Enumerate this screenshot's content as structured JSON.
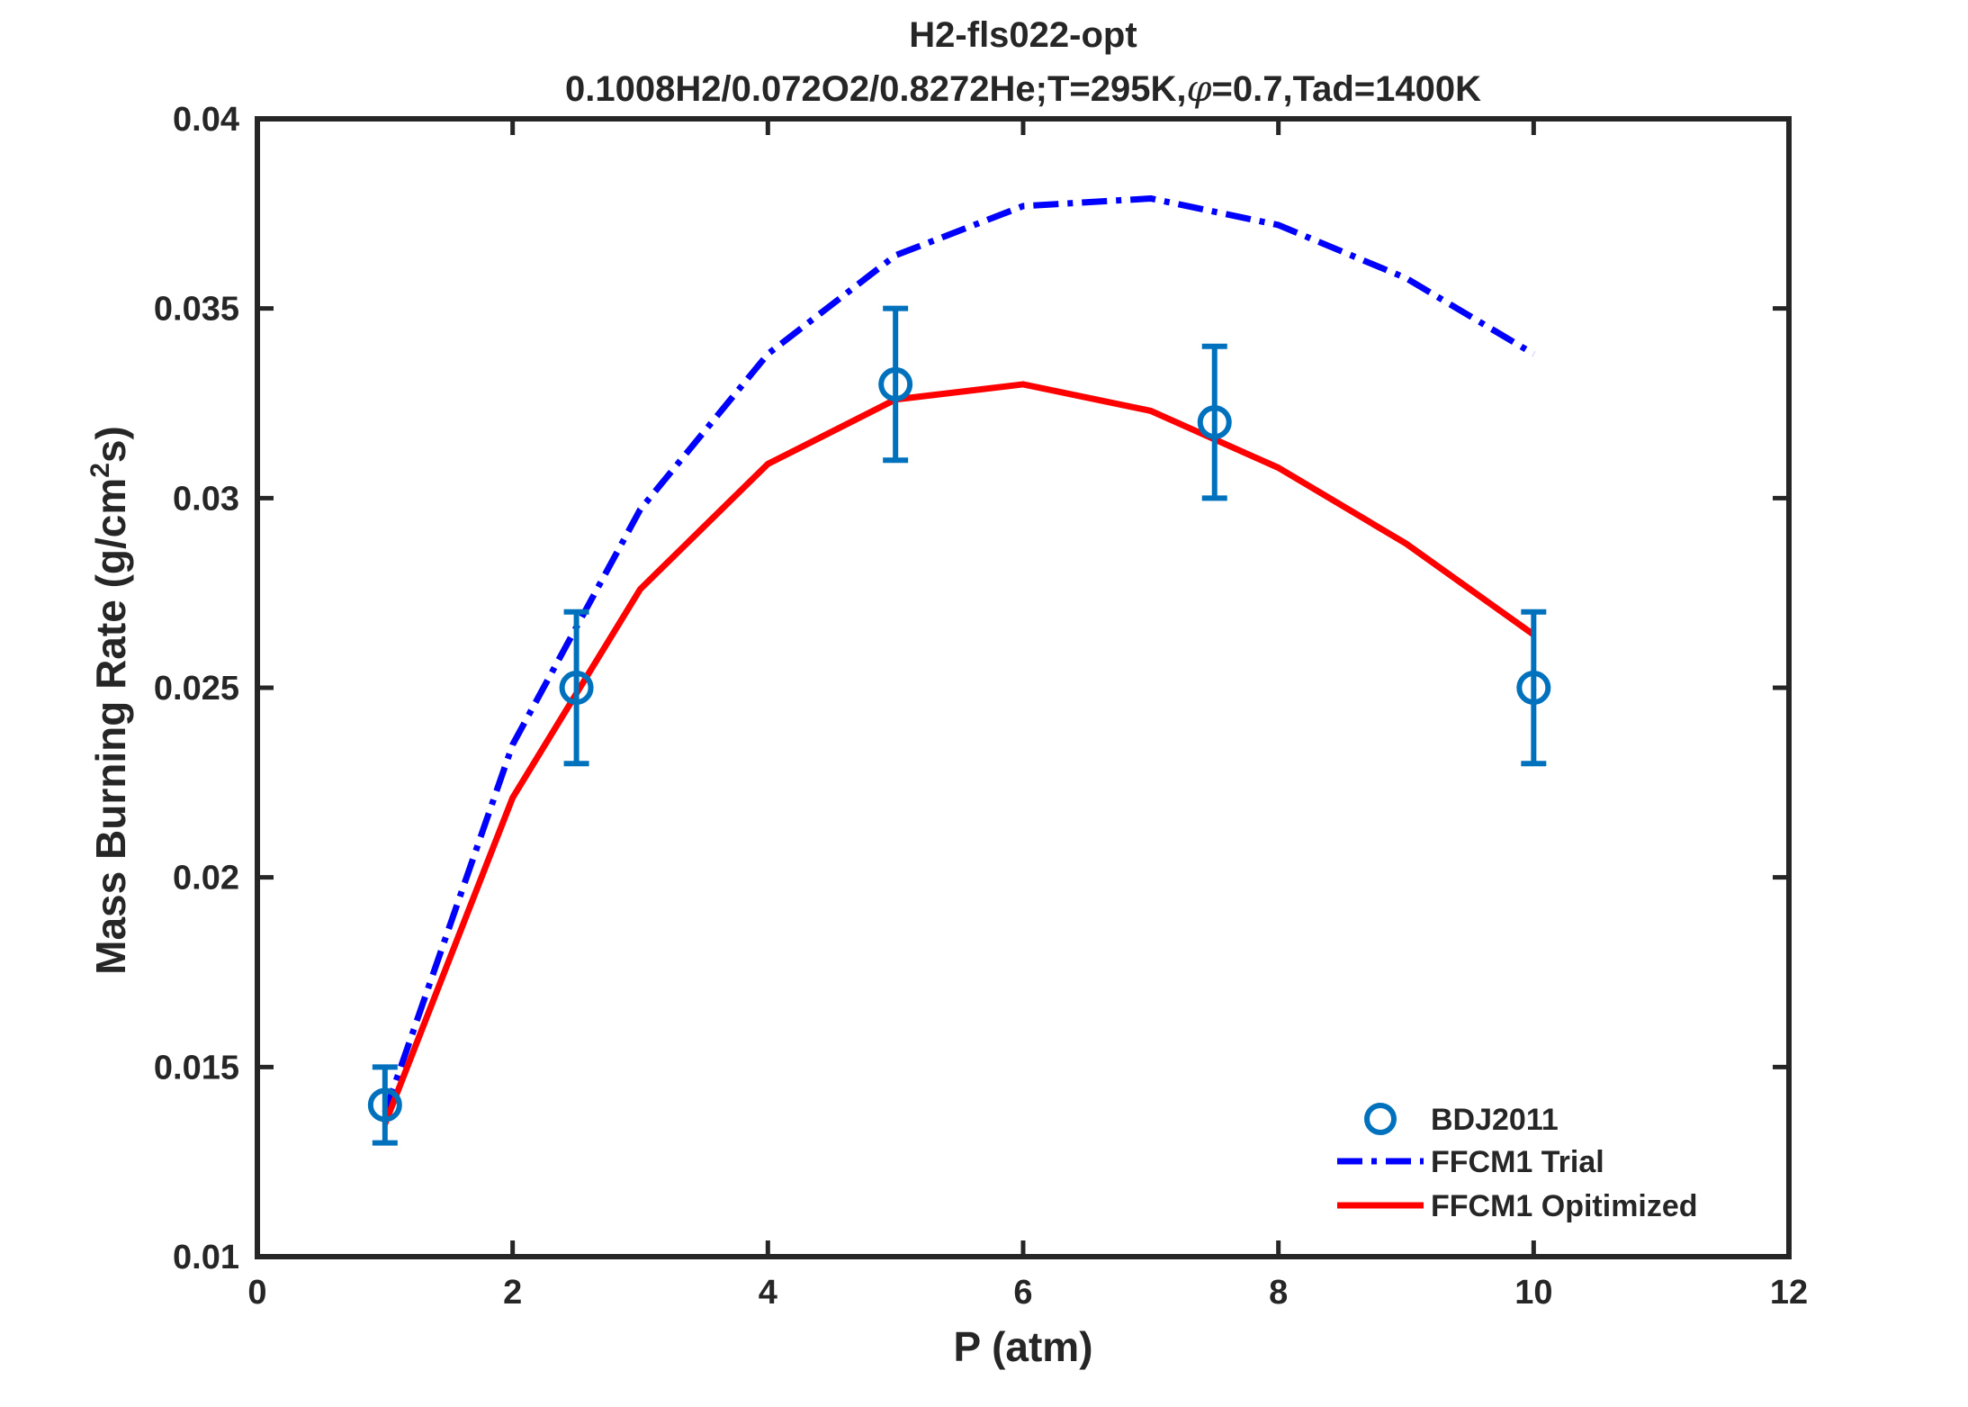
{
  "chart_data": {
    "type": "line",
    "title": "H2-fls022-opt",
    "subtitle_parts": {
      "prefix": "0.1008H2/0.072O2/0.8272He;T=295K,",
      "symbol": "φ",
      "suffix": "=0.7,Tad=1400K"
    },
    "xlabel": "P (atm)",
    "ylabel_parts": {
      "main": "Mass Burning Rate (g/cm",
      "sup": "2",
      "end": "s)"
    },
    "xlim": [
      0,
      12
    ],
    "ylim": [
      0.01,
      0.04
    ],
    "xticks": [
      0,
      2,
      4,
      6,
      8,
      10,
      12
    ],
    "xtick_labels": [
      "0",
      "2",
      "4",
      "6",
      "8",
      "10",
      "12"
    ],
    "yticks": [
      0.01,
      0.015,
      0.02,
      0.025,
      0.03,
      0.035,
      0.04
    ],
    "ytick_labels": [
      "0.01",
      "0.015",
      "0.02",
      "0.025",
      "0.03",
      "0.035",
      "0.04"
    ],
    "grid": false,
    "legend_position": "bottom-right",
    "series": [
      {
        "name": "BDJ2011",
        "kind": "errorbar",
        "color": "#0072bd",
        "x": [
          1,
          2.5,
          5,
          7.5,
          10
        ],
        "y": [
          0.014,
          0.025,
          0.033,
          0.032,
          0.025
        ],
        "err": [
          0.001,
          0.002,
          0.002,
          0.002,
          0.002
        ]
      },
      {
        "name": "FFCM1 Trial",
        "kind": "dashdot-line",
        "color": "#0000ff",
        "x": [
          1,
          2,
          3,
          4,
          5,
          6,
          7,
          8,
          9,
          10
        ],
        "y": [
          0.0138,
          0.0235,
          0.0297,
          0.0338,
          0.0364,
          0.0377,
          0.0379,
          0.0372,
          0.0358,
          0.0338
        ]
      },
      {
        "name": "FFCM1 Opitimized",
        "kind": "solid-line",
        "color": "#ff0000",
        "x": [
          1,
          2,
          3,
          4,
          5,
          6,
          7,
          8,
          9,
          10
        ],
        "y": [
          0.0135,
          0.0221,
          0.0276,
          0.0309,
          0.0326,
          0.033,
          0.0323,
          0.0308,
          0.0288,
          0.0264
        ]
      }
    ]
  }
}
